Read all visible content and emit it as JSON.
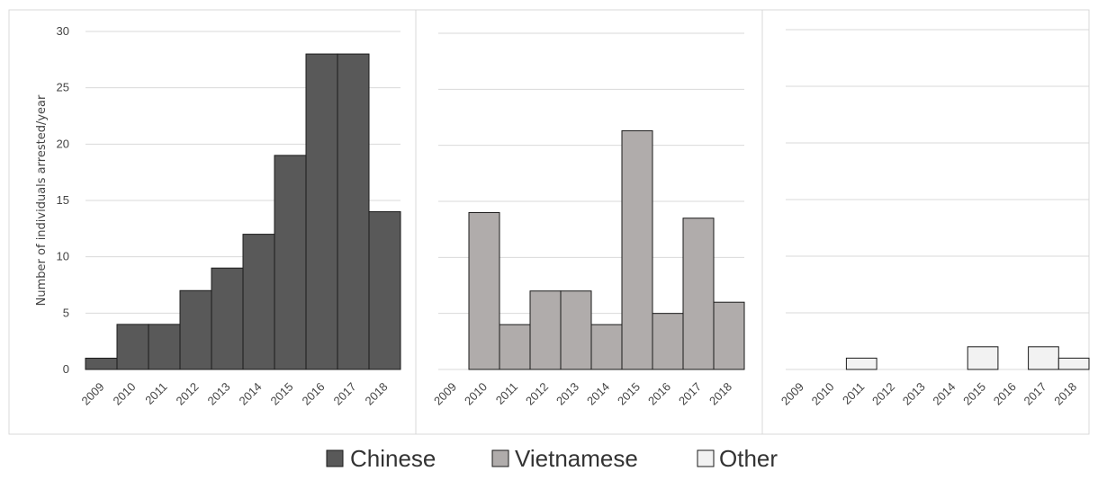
{
  "chart_data": [
    {
      "type": "bar",
      "categories": [
        "2009",
        "2010",
        "2011",
        "2012",
        "2013",
        "2014",
        "2015",
        "2016",
        "2017",
        "2018"
      ],
      "series": [
        {
          "name": "Chinese",
          "values": [
            1,
            4,
            4,
            7,
            9,
            12,
            19,
            28,
            28,
            14
          ]
        }
      ],
      "ylabel": "Number of individuals arrested/year",
      "ylim": [
        0,
        30
      ],
      "yticks": [
        0,
        5,
        10,
        15,
        20,
        25,
        30
      ],
      "grid": true
    },
    {
      "type": "bar",
      "categories": [
        "2009",
        "2010",
        "2011",
        "2012",
        "2013",
        "2014",
        "2015",
        "2016",
        "2017",
        "2018"
      ],
      "series": [
        {
          "name": "Vietnamese",
          "values": [
            0,
            14,
            4,
            7,
            7,
            4,
            21.3,
            5,
            13.5,
            6
          ]
        }
      ],
      "ylim": [
        0,
        30
      ],
      "grid": true
    },
    {
      "type": "bar",
      "categories": [
        "2009",
        "2010",
        "2011",
        "2012",
        "2013",
        "2014",
        "2015",
        "2016",
        "2017",
        "2018"
      ],
      "series": [
        {
          "name": "Other",
          "values": [
            0,
            0,
            1,
            0,
            0,
            0,
            2,
            0,
            2,
            1
          ]
        }
      ],
      "ylim": [
        0,
        30
      ],
      "grid": true
    }
  ],
  "legend": {
    "position": "bottom",
    "items": [
      {
        "label": "Chinese",
        "color": "#595959"
      },
      {
        "label": "Vietnamese",
        "color": "#b0acab"
      },
      {
        "label": "Other",
        "color": "#f2f2f2"
      }
    ]
  },
  "colors": {
    "bar_stroke": "#1a1a1a",
    "grid": "#d9d9d9",
    "panel_border": "#d9d9d9"
  }
}
